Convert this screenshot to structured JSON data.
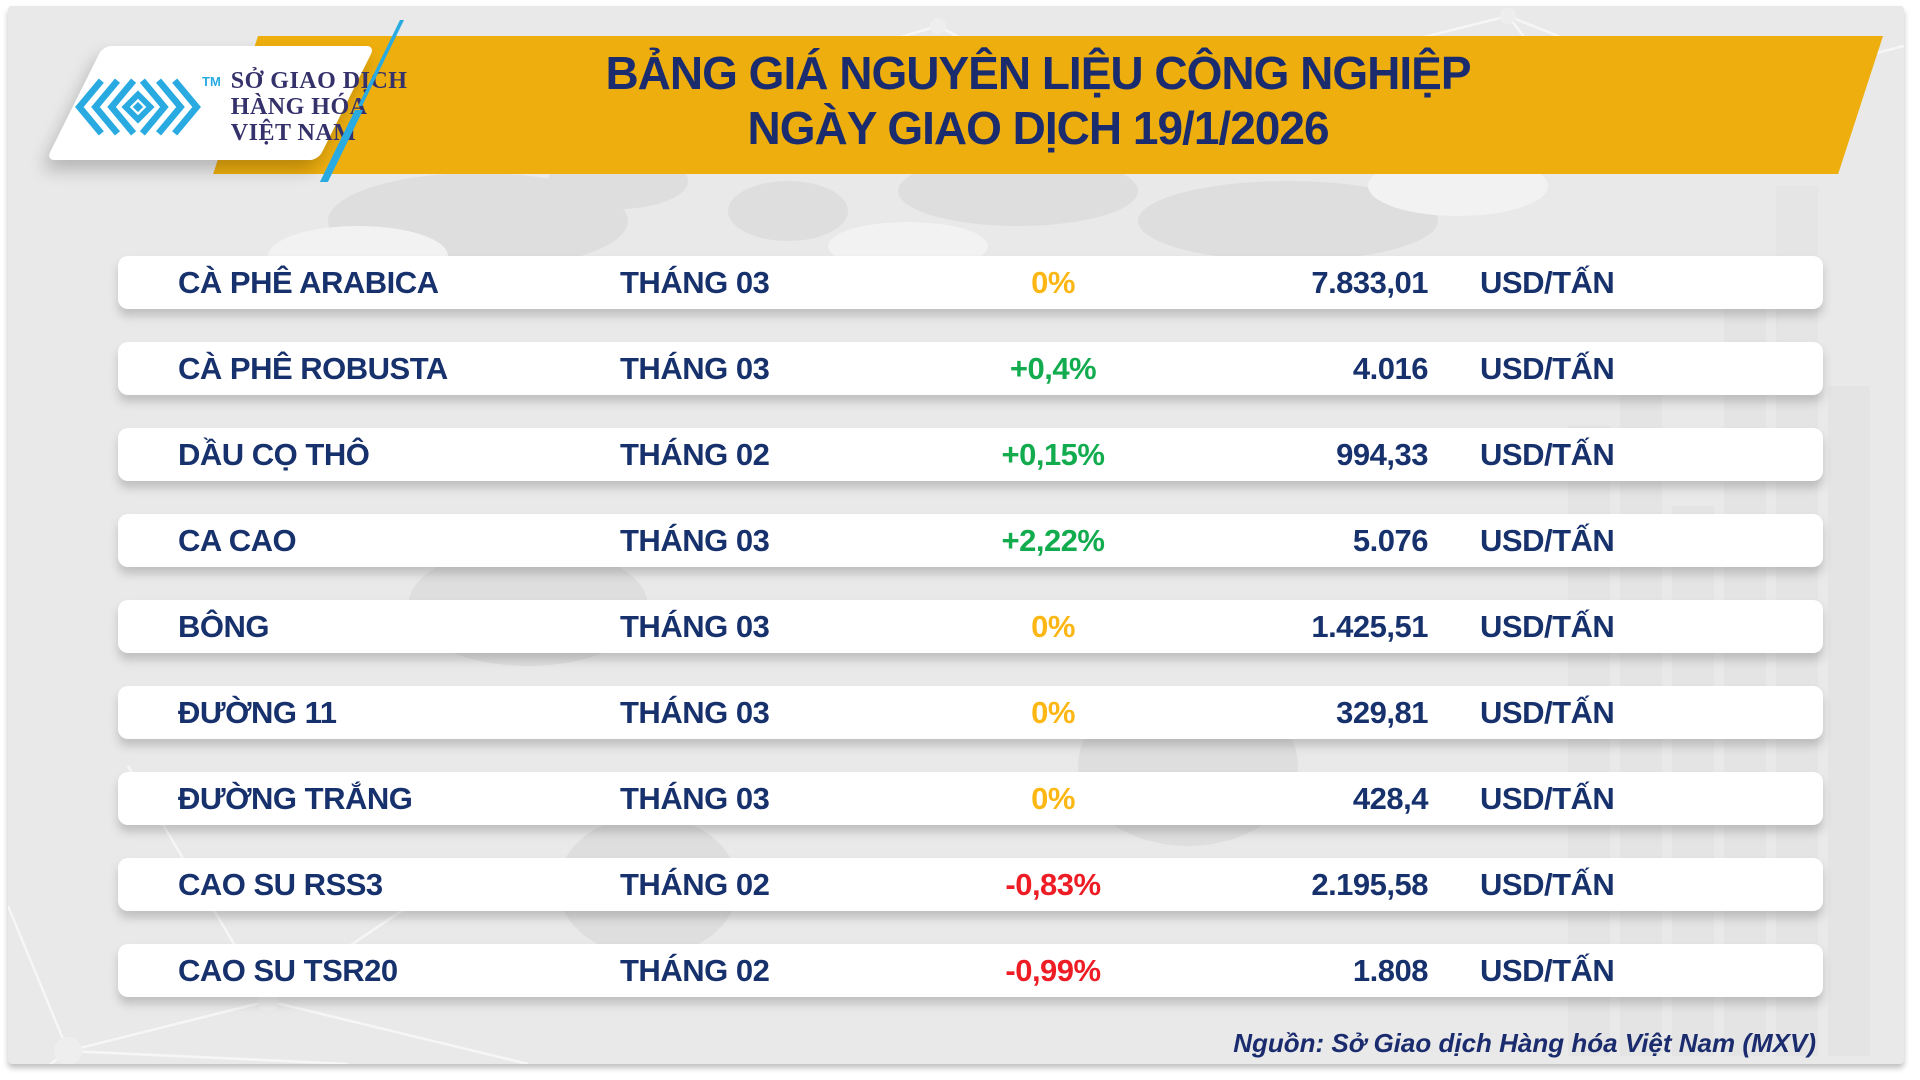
{
  "logo": {
    "tm": "TM",
    "line1": "SỞ GIAO DỊCH",
    "line2": "HÀNG HÓA",
    "line3": "VIỆT NAM"
  },
  "header": {
    "title_line1": "BẢNG GIÁ NGUYÊN LIỆU CÔNG NGHIỆP",
    "title_line2": "NGÀY GIAO DỊCH 19/1/2026"
  },
  "colors": {
    "banner_yellow": "#EDAE0E",
    "navy": "#17316D",
    "green_up": "#12AC4F",
    "amber_flat": "#FDB714",
    "red_down": "#EE1C25",
    "logo_cyan": "#29ABE2",
    "logo_text_navy": "#35316B",
    "background_gray": "#E9E9E9"
  },
  "chart_data": {
    "type": "table",
    "title": "BẢNG GIÁ NGUYÊN LIỆU CÔNG NGHIỆP NGÀY GIAO DỊCH 19/1/2026",
    "columns": [
      "product",
      "month",
      "change_pct",
      "price",
      "unit"
    ],
    "rows": [
      {
        "product": "CÀ PHÊ ARABICA",
        "month": "THÁNG 03",
        "change": "0%",
        "direction": "flat",
        "price": "7.833,01",
        "unit": "USD/TẤN"
      },
      {
        "product": "CÀ PHÊ ROBUSTA",
        "month": "THÁNG 03",
        "change": "+0,4%",
        "direction": "up",
        "price": "4.016",
        "unit": "USD/TẤN"
      },
      {
        "product": "DẦU CỌ THÔ",
        "month": "THÁNG 02",
        "change": "+0,15%",
        "direction": "up",
        "price": "994,33",
        "unit": "USD/TẤN"
      },
      {
        "product": "CA CAO",
        "month": "THÁNG 03",
        "change": "+2,22%",
        "direction": "up",
        "price": "5.076",
        "unit": "USD/TẤN"
      },
      {
        "product": "BÔNG",
        "month": "THÁNG 03",
        "change": "0%",
        "direction": "flat",
        "price": "1.425,51",
        "unit": "USD/TẤN"
      },
      {
        "product": "ĐƯỜNG 11",
        "month": "THÁNG 03",
        "change": "0%",
        "direction": "flat",
        "price": "329,81",
        "unit": "USD/TẤN"
      },
      {
        "product": "ĐƯỜNG TRẮNG",
        "month": "THÁNG 03",
        "change": "0%",
        "direction": "flat",
        "price": "428,4",
        "unit": "USD/TẤN"
      },
      {
        "product": "CAO SU RSS3",
        "month": "THÁNG 02",
        "change": "-0,83%",
        "direction": "down",
        "price": "2.195,58",
        "unit": "USD/TẤN"
      },
      {
        "product": "CAO SU TSR20",
        "month": "THÁNG 02",
        "change": "-0,99%",
        "direction": "down",
        "price": "1.808",
        "unit": "USD/TẤN"
      }
    ]
  },
  "footer": {
    "source": "Nguồn: Sở Giao dịch Hàng hóa Việt Nam (MXV)"
  }
}
